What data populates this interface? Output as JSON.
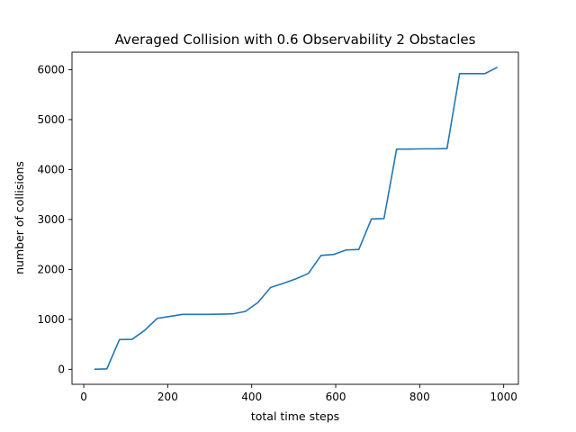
{
  "chart_data": {
    "type": "line",
    "title": "Averaged Collision with 0.6 Observability 2 Obstacles",
    "xlabel": "total time steps",
    "ylabel": "number of collisions",
    "xlim": [
      -28,
      1035
    ],
    "ylim": [
      -300,
      6350
    ],
    "xticks": [
      0,
      200,
      400,
      600,
      800,
      1000
    ],
    "yticks": [
      0,
      1000,
      2000,
      3000,
      4000,
      5000,
      6000
    ],
    "grid": false,
    "legend": "none",
    "line_color": "#1f77b4",
    "series": [
      {
        "x": [
          25,
          55,
          85,
          115,
          145,
          175,
          205,
          235,
          265,
          295,
          325,
          355,
          385,
          415,
          445,
          475,
          505,
          535,
          565,
          595,
          625,
          655,
          685,
          715,
          745,
          775,
          805,
          835,
          865,
          895,
          925,
          955,
          985
        ],
        "y": [
          0,
          10,
          595,
          600,
          780,
          1020,
          1060,
          1100,
          1100,
          1100,
          1105,
          1110,
          1160,
          1340,
          1640,
          1720,
          1810,
          1920,
          2280,
          2300,
          2390,
          2400,
          3010,
          3020,
          4410,
          4410,
          4415,
          4415,
          4420,
          5920,
          5920,
          5920,
          6050
        ]
      }
    ]
  }
}
